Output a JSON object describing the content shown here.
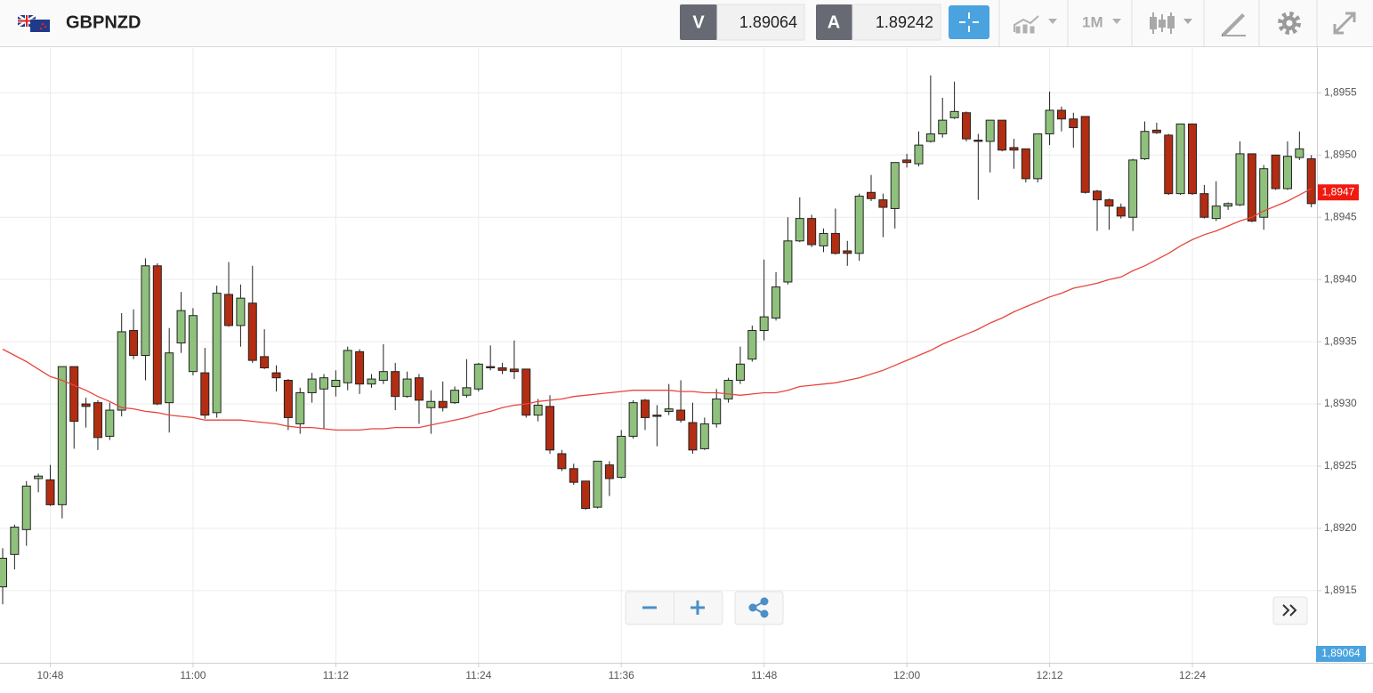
{
  "header": {
    "symbol": "GBPNZD",
    "bid_label": "V",
    "bid": "1.89064",
    "ask_label": "A",
    "ask": "1.89242",
    "period": "1M"
  },
  "chart_data": {
    "type": "candlestick",
    "categories": [
      null,
      null,
      null,
      null,
      "10:48",
      null,
      null,
      null,
      null,
      null,
      null,
      null,
      null,
      null,
      null,
      null,
      "11:00",
      null,
      null,
      null,
      null,
      null,
      null,
      null,
      null,
      null,
      null,
      null,
      "11:12",
      null,
      null,
      null,
      null,
      null,
      null,
      null,
      null,
      null,
      null,
      null,
      "11:24",
      null,
      null,
      null,
      null,
      null,
      null,
      null,
      null,
      null,
      null,
      null,
      "11:36",
      null,
      null,
      null,
      null,
      null,
      null,
      null,
      null,
      null,
      null,
      null,
      "11:48",
      null,
      null,
      null,
      null,
      null,
      null,
      null,
      null,
      null,
      null,
      null,
      "12:00",
      null,
      null,
      null,
      null,
      null,
      null,
      null,
      null,
      null,
      null,
      null,
      "12:12",
      null,
      null,
      null,
      null,
      null,
      null,
      null,
      null,
      null,
      null,
      null,
      "12:24",
      null,
      null,
      null,
      null,
      null,
      null,
      null,
      null,
      null,
      null
    ],
    "open": [
      1.89153,
      1.89179,
      1.89199,
      1.8924,
      1.89239,
      1.89219,
      1.8933,
      1.893,
      1.89301,
      1.89274,
      1.89295,
      1.89359,
      1.89339,
      1.89411,
      1.89301,
      1.89349,
      1.89326,
      1.89325,
      1.89293,
      1.89388,
      1.89363,
      1.89381,
      1.89338,
      1.89325,
      1.89319,
      1.89284,
      1.89309,
      1.89312,
      1.89314,
      1.89317,
      1.89342,
      1.89316,
      1.89319,
      1.89326,
      1.89306,
      1.89321,
      1.89297,
      1.89302,
      1.89301,
      1.89307,
      1.89312,
      1.8933,
      1.89329,
      1.89328,
      1.89328,
      1.89291,
      1.89298,
      1.8926,
      1.89248,
      1.89238,
      1.89217,
      1.89251,
      1.89241,
      1.89274,
      1.89303,
      1.89291,
      1.89294,
      1.89295,
      1.89285,
      1.89264,
      1.89284,
      1.89304,
      1.89319,
      1.89336,
      1.89359,
      1.89369,
      1.89398,
      1.89431,
      1.89449,
      1.89427,
      1.89437,
      1.89423,
      1.89421,
      1.8947,
      1.89464,
      1.89457,
      1.89496,
      1.89493,
      1.89511,
      1.89517,
      1.8953,
      1.89534,
      1.89512,
      1.89511,
      1.89528,
      1.89506,
      1.89505,
      1.89481,
      1.89517,
      1.89536,
      1.89529,
      1.89531,
      1.89471,
      1.89464,
      1.89458,
      1.8945,
      1.89497,
      1.8952,
      1.89516,
      1.89469,
      1.89525,
      1.89469,
      1.89449,
      1.89459,
      1.8946,
      1.89501,
      1.8945,
      1.895,
      1.89473,
      1.89498,
      1.89497
    ],
    "high": [
      1.89184,
      1.89203,
      1.89238,
      1.89244,
      1.89251,
      1.8933,
      1.8933,
      1.89305,
      1.89303,
      1.89301,
      1.89373,
      1.89376,
      1.89417,
      1.89413,
      1.89361,
      1.8939,
      1.89377,
      1.89345,
      1.89395,
      1.89414,
      1.89396,
      1.89411,
      1.8936,
      1.89331,
      1.8932,
      1.89313,
      1.89325,
      1.89324,
      1.89327,
      1.89346,
      1.89344,
      1.89324,
      1.89348,
      1.89333,
      1.89326,
      1.89324,
      1.89311,
      1.89318,
      1.89314,
      1.89336,
      1.89333,
      1.89347,
      1.89333,
      1.89351,
      1.89328,
      1.89304,
      1.89307,
      1.89263,
      1.89252,
      1.89238,
      1.89254,
      1.89254,
      1.89279,
      1.89303,
      1.89304,
      1.89299,
      1.89316,
      1.89319,
      1.89301,
      1.89289,
      1.89312,
      1.89321,
      1.89346,
      1.89363,
      1.89416,
      1.89406,
      1.8945,
      1.89466,
      1.89452,
      1.89441,
      1.89457,
      1.89431,
      1.89469,
      1.89484,
      1.89469,
      1.89494,
      1.89501,
      1.89519,
      1.89564,
      1.89546,
      1.89559,
      1.89535,
      1.89517,
      1.89528,
      1.89528,
      1.89513,
      1.89505,
      1.89517,
      1.89551,
      1.89539,
      1.89534,
      1.89531,
      1.89472,
      1.89465,
      1.89461,
      1.89497,
      1.89527,
      1.89526,
      1.89517,
      1.89525,
      1.89525,
      1.89476,
      1.89479,
      1.89462,
      1.89511,
      1.89501,
      1.89492,
      1.895,
      1.89511,
      1.89519,
      1.895
    ],
    "low": [
      1.89139,
      1.89167,
      1.89186,
      1.89229,
      1.89218,
      1.89208,
      1.89264,
      1.89281,
      1.89263,
      1.89271,
      1.8929,
      1.89336,
      1.89319,
      1.89299,
      1.89277,
      1.89341,
      1.89323,
      1.89288,
      1.89289,
      1.89362,
      1.89346,
      1.89333,
      1.89328,
      1.8931,
      1.89279,
      1.89276,
      1.89301,
      1.8928,
      1.89306,
      1.89311,
      1.89308,
      1.89313,
      1.89316,
      1.89295,
      1.89305,
      1.89284,
      1.89276,
      1.89294,
      1.893,
      1.89305,
      1.8931,
      1.89327,
      1.89324,
      1.8932,
      1.89289,
      1.89286,
      1.8926,
      1.89246,
      1.89235,
      1.89215,
      1.89216,
      1.89226,
      1.8924,
      1.89272,
      1.89279,
      1.89266,
      1.89291,
      1.89285,
      1.8926,
      1.89263,
      1.89281,
      1.89301,
      1.89316,
      1.89334,
      1.89351,
      1.89367,
      1.89396,
      1.8943,
      1.89426,
      1.89422,
      1.8942,
      1.89411,
      1.89415,
      1.89463,
      1.89434,
      1.89441,
      1.8949,
      1.89491,
      1.8951,
      1.89514,
      1.89529,
      1.89511,
      1.89464,
      1.89486,
      1.89503,
      1.89489,
      1.89478,
      1.89478,
      1.89508,
      1.89519,
      1.89506,
      1.89469,
      1.89439,
      1.8944,
      1.89449,
      1.89439,
      1.89496,
      1.89517,
      1.89468,
      1.89468,
      1.89468,
      1.89449,
      1.89447,
      1.89456,
      1.89459,
      1.89446,
      1.8944,
      1.89472,
      1.89472,
      1.89496,
      1.89458
    ],
    "close": [
      1.89176,
      1.89201,
      1.89234,
      1.89242,
      1.89219,
      1.8933,
      1.89286,
      1.89298,
      1.89273,
      1.89295,
      1.89358,
      1.89339,
      1.89411,
      1.893,
      1.89341,
      1.89375,
      1.89371,
      1.89291,
      1.89389,
      1.89363,
      1.89385,
      1.89335,
      1.89329,
      1.89321,
      1.89289,
      1.89309,
      1.8932,
      1.89321,
      1.89319,
      1.89343,
      1.89316,
      1.8932,
      1.89326,
      1.89306,
      1.8932,
      1.89303,
      1.89302,
      1.89297,
      1.89311,
      1.89313,
      1.89332,
      1.89329,
      1.89327,
      1.89326,
      1.89291,
      1.89299,
      1.89263,
      1.89248,
      1.89237,
      1.89216,
      1.89254,
      1.8924,
      1.89274,
      1.89301,
      1.89289,
      1.8929,
      1.89296,
      1.89287,
      1.89263,
      1.89284,
      1.89304,
      1.89319,
      1.89332,
      1.89359,
      1.8937,
      1.89394,
      1.89431,
      1.89449,
      1.89428,
      1.89437,
      1.89421,
      1.89421,
      1.89467,
      1.89465,
      1.89458,
      1.89494,
      1.89494,
      1.89508,
      1.89517,
      1.89528,
      1.89535,
      1.89513,
      1.89511,
      1.89528,
      1.89504,
      1.89504,
      1.89481,
      1.89517,
      1.89536,
      1.89529,
      1.89522,
      1.8947,
      1.89464,
      1.89459,
      1.89451,
      1.89496,
      1.89519,
      1.89518,
      1.89469,
      1.89525,
      1.89469,
      1.8945,
      1.89459,
      1.89461,
      1.89501,
      1.89447,
      1.89489,
      1.89473,
      1.89499,
      1.89505,
      1.89461
    ],
    "up_color": "#8fc17d",
    "down_color": "#b32d12",
    "line": {
      "color": "#e8453c",
      "values": [
        1.89344,
        1.89339,
        1.89334,
        1.89328,
        1.89322,
        1.89319,
        1.89315,
        1.89311,
        1.89306,
        1.89302,
        1.89297,
        1.89296,
        1.89294,
        1.89293,
        1.89291,
        1.8929,
        1.89289,
        1.89287,
        1.89287,
        1.89287,
        1.89287,
        1.89286,
        1.89285,
        1.89284,
        1.89282,
        1.89281,
        1.89281,
        1.8928,
        1.89279,
        1.89279,
        1.89279,
        1.8928,
        1.8928,
        1.89281,
        1.89281,
        1.89281,
        1.89283,
        1.89285,
        1.89287,
        1.89289,
        1.89292,
        1.89294,
        1.89297,
        1.89299,
        1.893,
        1.89302,
        1.89303,
        1.89304,
        1.89306,
        1.89307,
        1.89308,
        1.89309,
        1.8931,
        1.89311,
        1.89311,
        1.89311,
        1.89311,
        1.8931,
        1.8931,
        1.89309,
        1.89309,
        1.89308,
        1.89307,
        1.89308,
        1.89309,
        1.89309,
        1.89311,
        1.89314,
        1.89315,
        1.89316,
        1.89317,
        1.89319,
        1.89321,
        1.89324,
        1.89327,
        1.89331,
        1.89335,
        1.89339,
        1.89343,
        1.89348,
        1.89352,
        1.89356,
        1.8936,
        1.89365,
        1.89369,
        1.89374,
        1.89378,
        1.89382,
        1.89386,
        1.89389,
        1.89393,
        1.89395,
        1.89397,
        1.894,
        1.89402,
        1.89407,
        1.89411,
        1.89416,
        1.89421,
        1.89427,
        1.89432,
        1.89436,
        1.89439,
        1.89443,
        1.89447,
        1.8945,
        1.89455,
        1.89459,
        1.89463,
        1.89468,
        1.89473
      ]
    },
    "ylim": [
      1.89092,
      1.89586
    ],
    "yticks": [
      {
        "value": 1.8915,
        "label": "1,8915"
      },
      {
        "value": 1.892,
        "label": "1,8920"
      },
      {
        "value": 1.8925,
        "label": "1,8925"
      },
      {
        "value": 1.893,
        "label": "1,8930"
      },
      {
        "value": 1.8935,
        "label": "1,8935"
      },
      {
        "value": 1.894,
        "label": "1,8940"
      },
      {
        "value": 1.8945,
        "label": "1,8945"
      },
      {
        "value": 1.895,
        "label": "1,8950"
      },
      {
        "value": 1.8955,
        "label": "1,8955"
      }
    ],
    "grid": true,
    "line_tag": {
      "value": 1.8947,
      "label": "1,8947",
      "color": "#f01a0f"
    },
    "bid_tag": {
      "label": "1,89064",
      "color": "#4aa3df"
    }
  }
}
